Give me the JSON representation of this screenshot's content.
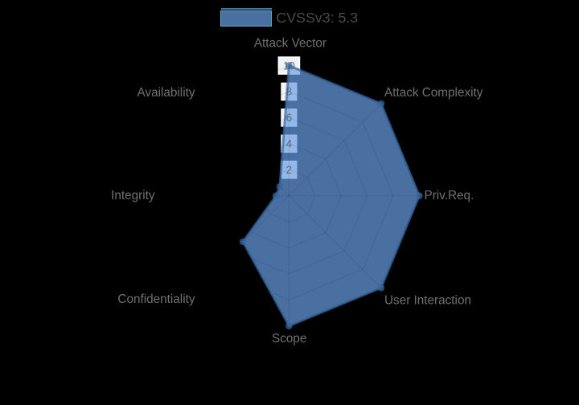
{
  "chart_data": {
    "type": "radar",
    "categories": [
      "Attack Vector",
      "Attack Complexity",
      "Priv.Req.",
      "User Interaction",
      "Scope",
      "Confidentiality",
      "Integrity",
      "Availability"
    ],
    "series": [
      {
        "name": "CVSSv3: 5.3",
        "values": [
          10,
          10,
          10,
          10,
          10,
          5,
          1,
          1
        ]
      }
    ],
    "rmin": 0,
    "rmax": 10,
    "radial_ticks": [
      2,
      4,
      6,
      8,
      10
    ],
    "grid": true,
    "legend_position": "top-center",
    "colors": {
      "series_fill": "#6aa0e7",
      "series_fill_opacity": 0.7,
      "series_line": "#38679d",
      "series_line_opacity": 0.72,
      "grid_line": "rgba(0,0,0,0.085)",
      "tick_backdrop": "rgba(255,255,255,0.95)",
      "tick_backdrop_edge": "rgba(255,255,255,1)",
      "tick_text": "#5f6c7e",
      "axis_label_text": "#707070",
      "legend_text": "#4a4a4a",
      "legend_line": "#3b79b8",
      "legend_box_border": "rgba(110,190,205,0.75)",
      "background": "#000000"
    }
  },
  "legend": {
    "label": "CVSSv3: 5.3"
  }
}
